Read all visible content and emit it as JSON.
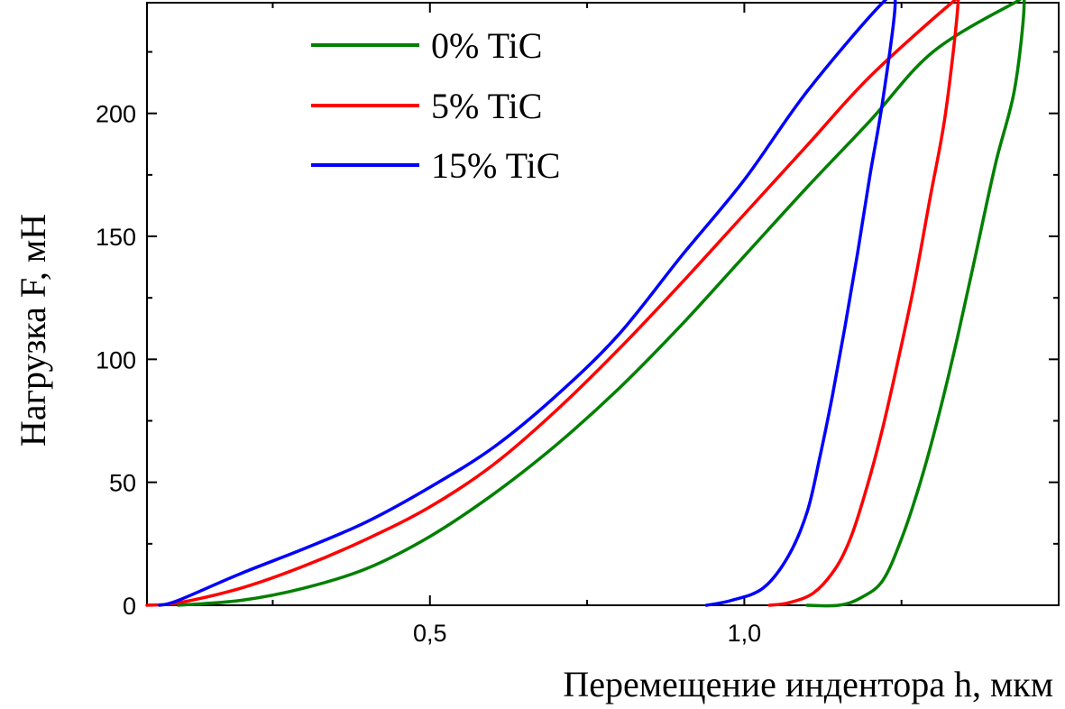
{
  "chart_data": {
    "type": "line",
    "title": "",
    "xlabel": "Перемещение индентора h, мкм",
    "ylabel": "Нагрузка F, мН",
    "xlim": [
      0.05,
      1.5
    ],
    "ylim": [
      0,
      245
    ],
    "x_ticks": [
      0.5,
      1.0
    ],
    "x_tick_labels": [
      "0,5",
      "1,0"
    ],
    "x_minor_ticks": [
      0.25,
      0.75,
      1.25
    ],
    "y_ticks": [
      0,
      50,
      100,
      150,
      200
    ],
    "y_tick_labels": [
      "0",
      "50",
      "100",
      "150",
      "200"
    ],
    "y_minor_step": 25,
    "grid": false,
    "legend_position": "top-left",
    "series": [
      {
        "name": "0% TiC",
        "color": "#008000",
        "loading": [
          [
            0.1,
            0
          ],
          [
            0.2,
            2
          ],
          [
            0.3,
            7
          ],
          [
            0.4,
            15
          ],
          [
            0.5,
            28
          ],
          [
            0.6,
            45
          ],
          [
            0.7,
            65
          ],
          [
            0.8,
            88
          ],
          [
            0.9,
            114
          ],
          [
            1.0,
            142
          ],
          [
            1.1,
            170
          ],
          [
            1.2,
            197
          ],
          [
            1.3,
            225
          ],
          [
            1.43,
            245
          ]
        ],
        "unloading": [
          [
            1.445,
            245
          ],
          [
            1.43,
            210
          ],
          [
            1.4,
            180
          ],
          [
            1.37,
            145
          ],
          [
            1.34,
            110
          ],
          [
            1.31,
            78
          ],
          [
            1.28,
            50
          ],
          [
            1.25,
            27
          ],
          [
            1.22,
            10
          ],
          [
            1.185,
            3
          ],
          [
            1.15,
            0
          ],
          [
            1.1,
            0
          ]
        ]
      },
      {
        "name": "5% TiC",
        "color": "#ff0000",
        "loading": [
          [
            0.05,
            0
          ],
          [
            0.1,
            1
          ],
          [
            0.2,
            7
          ],
          [
            0.3,
            16
          ],
          [
            0.4,
            27
          ],
          [
            0.5,
            40
          ],
          [
            0.6,
            57
          ],
          [
            0.7,
            79
          ],
          [
            0.8,
            104
          ],
          [
            0.9,
            131
          ],
          [
            1.0,
            159
          ],
          [
            1.1,
            187
          ],
          [
            1.2,
            215
          ],
          [
            1.33,
            245
          ]
        ],
        "unloading": [
          [
            1.34,
            245
          ],
          [
            1.32,
            200
          ],
          [
            1.295,
            165
          ],
          [
            1.27,
            130
          ],
          [
            1.245,
            100
          ],
          [
            1.22,
            72
          ],
          [
            1.195,
            48
          ],
          [
            1.17,
            28
          ],
          [
            1.145,
            15
          ],
          [
            1.11,
            5
          ],
          [
            1.07,
            1
          ],
          [
            1.04,
            0
          ]
        ]
      },
      {
        "name": "15% TiC",
        "color": "#0000ff",
        "loading": [
          [
            0.07,
            0
          ],
          [
            0.1,
            2
          ],
          [
            0.2,
            13
          ],
          [
            0.3,
            23
          ],
          [
            0.4,
            34
          ],
          [
            0.5,
            48
          ],
          [
            0.6,
            64
          ],
          [
            0.7,
            85
          ],
          [
            0.8,
            110
          ],
          [
            0.9,
            142
          ],
          [
            1.0,
            173
          ],
          [
            1.1,
            209
          ],
          [
            1.22,
            245
          ]
        ],
        "unloading": [
          [
            1.24,
            245
          ],
          [
            1.22,
            205
          ],
          [
            1.2,
            175
          ],
          [
            1.18,
            143
          ],
          [
            1.16,
            113
          ],
          [
            1.14,
            85
          ],
          [
            1.12,
            60
          ],
          [
            1.1,
            38
          ],
          [
            1.07,
            20
          ],
          [
            1.03,
            7
          ],
          [
            0.98,
            2
          ],
          [
            0.94,
            0
          ]
        ]
      }
    ]
  }
}
